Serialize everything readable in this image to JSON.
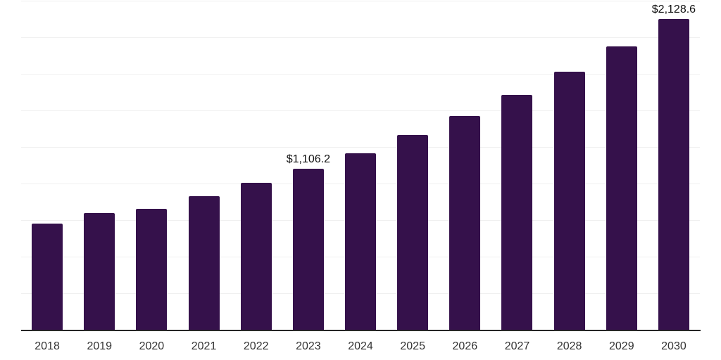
{
  "chart_data": {
    "type": "bar",
    "title": "",
    "xlabel": "",
    "ylabel": "",
    "categories": [
      "2018",
      "2019",
      "2020",
      "2021",
      "2022",
      "2023",
      "2024",
      "2025",
      "2026",
      "2027",
      "2028",
      "2029",
      "2030"
    ],
    "values": [
      729,
      804,
      833,
      920,
      1009,
      1106.2,
      1214,
      1335,
      1465,
      1609,
      1768,
      1943,
      2128.6
    ],
    "value_labels": [
      null,
      null,
      null,
      null,
      null,
      "$1,106.2",
      null,
      null,
      null,
      null,
      null,
      null,
      "$2,128.6"
    ],
    "ylim": [
      0,
      2250
    ],
    "gridline_step": 250,
    "grid": "horizontal",
    "y_tick_labels_shown": false,
    "legend": "none",
    "colors": {
      "bar": "#35114b",
      "axis_line": "#262626",
      "gridline": "#f0f0f0",
      "x_tick_labels": "#333333",
      "data_labels": "#111111",
      "background": "#ffffff"
    }
  }
}
